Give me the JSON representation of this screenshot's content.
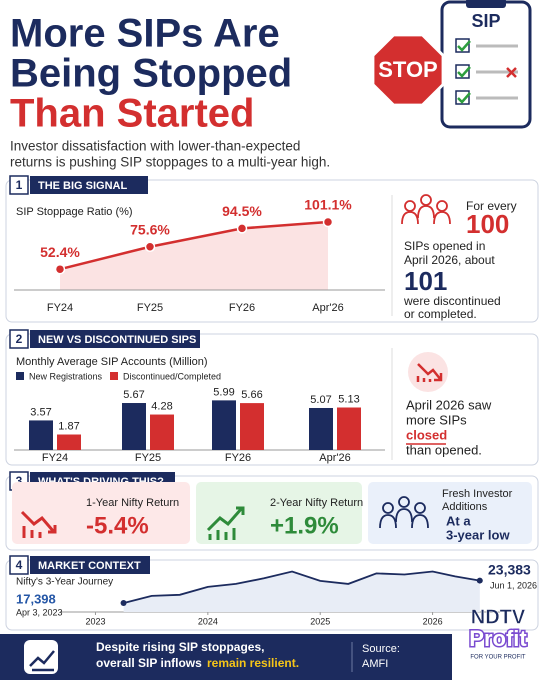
{
  "header": {
    "title": [
      "More SIPs Are",
      "Being Stopped",
      "Than Started"
    ],
    "subtitle": [
      "Investor dissatisfaction with lower-than-expected",
      "returns is pushing SIP stoppages to a multi-year high."
    ],
    "sign": "STOP",
    "clipboard": "SIP"
  },
  "sections": [
    {
      "number": "1",
      "title": "THE BIG SIGNAL"
    },
    {
      "number": "2",
      "title": "NEW VS DISCONTINUED SIPS"
    },
    {
      "number": "3",
      "title": "WHAT'S DRIVING THIS?"
    },
    {
      "number": "4",
      "title": "MARKET CONTEXT"
    }
  ],
  "chart_data": [
    {
      "type": "line",
      "title": "SIP Stoppage Ratio (%)",
      "categories": [
        "FY24",
        "FY25",
        "FY26",
        "Apr'26"
      ],
      "values": [
        52.4,
        75.6,
        94.5,
        101.1
      ],
      "value_labels": [
        "52.4%",
        "75.6%",
        "94.5%",
        "101.1%"
      ],
      "color": "#d32f2f",
      "ylim": [
        0,
        130
      ]
    },
    {
      "type": "bar",
      "title": "Monthly Average SIP Accounts (Million)",
      "categories": [
        "FY24",
        "FY25",
        "FY26",
        "Apr'26"
      ],
      "series": [
        {
          "name": "New Registrations",
          "color": "#1c2b5e",
          "values": [
            3.57,
            5.67,
            5.99,
            5.07
          ]
        },
        {
          "name": "Discontinued/Completed",
          "color": "#d32f2f",
          "values": [
            1.87,
            4.28,
            5.66,
            5.13
          ]
        }
      ],
      "ylim": [
        0,
        7
      ]
    },
    {
      "type": "line",
      "title": "Nifty's 3-Year Journey",
      "x": [
        2023.25,
        2023.5,
        2023.75,
        2024.0,
        2024.25,
        2024.5,
        2024.75,
        2025.0,
        2025.25,
        2025.5,
        2025.75,
        2026.0,
        2026.2,
        2026.42
      ],
      "values": [
        17398,
        19300,
        19600,
        21700,
        22500,
        24000,
        25800,
        23300,
        22500,
        25300,
        25000,
        25800,
        24500,
        23383
      ],
      "color": "#1c2b5e",
      "xlim": [
        2022.8,
        2026.6
      ],
      "ylim": [
        15000,
        27000
      ],
      "xticks": [
        2023,
        2024,
        2025,
        2026
      ],
      "annotations": [
        {
          "text": "17,398",
          "sub": "Apr 3, 2023"
        },
        {
          "text": "23,383",
          "sub": "Jun 1, 2026"
        }
      ]
    }
  ],
  "signal_box": {
    "lead": "For every",
    "big1": "100",
    "mid": [
      "SIPs opened in",
      "April 2026, about"
    ],
    "big2": "101",
    "tail": [
      "were discontinued",
      "or completed."
    ]
  },
  "bars_box": {
    "lines": [
      "April 2026 saw",
      "more SIPs"
    ],
    "highlight": "closed",
    "tail": "than opened."
  },
  "drivers": [
    {
      "label": [
        "1-Year Nifty Return"
      ],
      "value": "-5.4%"
    },
    {
      "label": [
        "2-Year Nifty Return"
      ],
      "value": "+1.9%"
    },
    {
      "label": [
        "Fresh Investor",
        "Additions"
      ],
      "value": [
        "At a",
        "3-year low"
      ]
    }
  ],
  "footer": {
    "text": [
      "Despite rising SIP stoppages,",
      "overall SIP inflows"
    ],
    "highlight": "remain resilient.",
    "source_label": "Source:",
    "source": "AMFI"
  },
  "logo": {
    "top": "NDTV",
    "main": "Profit",
    "tag": "FOR YOUR PROFIT"
  }
}
